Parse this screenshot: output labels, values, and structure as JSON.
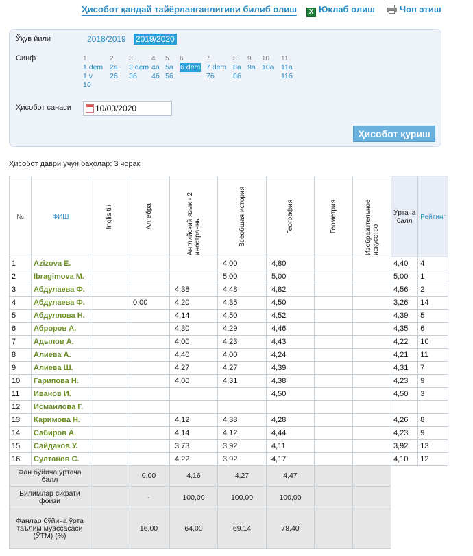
{
  "toolbar": {
    "howto": "Ҳисобот қандай тайёрланганлигини билиб олиш",
    "download": "Юклаб олиш",
    "print": "Чоп этиш"
  },
  "filters": {
    "year_label": "Ўқув йили",
    "years": [
      "2018/2019",
      "2019/2020"
    ],
    "active_year": "2019/2020",
    "class_label": "Синф",
    "grades": [
      {
        "num": "1",
        "classes": [
          "1 dem",
          "1 v",
          "1б"
        ]
      },
      {
        "num": "2",
        "classes": [
          "2а",
          "2б"
        ]
      },
      {
        "num": "3",
        "classes": [
          "3 dem",
          "3б"
        ]
      },
      {
        "num": "4",
        "classes": [
          "4а",
          "4б"
        ]
      },
      {
        "num": "5",
        "classes": [
          "5а",
          "5б"
        ]
      },
      {
        "num": "6",
        "classes": [
          "6 dem"
        ]
      },
      {
        "num": "7",
        "classes": [
          "7 dem",
          "7б"
        ]
      },
      {
        "num": "8",
        "classes": [
          "8а",
          "8б"
        ]
      },
      {
        "num": "9",
        "classes": [
          "9а"
        ]
      },
      {
        "num": "10",
        "classes": [
          "10а"
        ]
      },
      {
        "num": "11",
        "classes": [
          "11а",
          "11б"
        ]
      }
    ],
    "active_class": "6 dem",
    "date_label": "Ҳисобот санаси",
    "date_value": "10/03/2020",
    "report_button": "Ҳисобот қуриш"
  },
  "period_text": "Ҳисобот даври учун баҳолар: 3 чорак",
  "table": {
    "headers": {
      "num": "№",
      "name": "ФИШ",
      "subjects": [
        "Inglis tili",
        "Алгебра",
        "Английский язык - 2 иностранны",
        "Всеобщая история",
        "География",
        "Геометрия",
        "Изобразительное искусство"
      ],
      "avg": "Ўртача балл",
      "rank": "Рейтинг"
    },
    "rows": [
      {
        "n": "1",
        "name": "Azizova E.",
        "g": [
          "",
          "",
          "",
          "4,00",
          "4,80",
          "",
          ""
        ],
        "avg": "4,40",
        "rank": "4"
      },
      {
        "n": "2",
        "name": "Ibragimova M.",
        "g": [
          "",
          "",
          "",
          "5,00",
          "5,00",
          "",
          ""
        ],
        "avg": "5,00",
        "rank": "1"
      },
      {
        "n": "3",
        "name": "Абдулаева Ф.",
        "g": [
          "",
          "",
          "4,38",
          "4,48",
          "4,82",
          "",
          ""
        ],
        "avg": "4,56",
        "rank": "2"
      },
      {
        "n": "4",
        "name": "Абдулаева Ф.",
        "g": [
          "",
          "0,00",
          "4,20",
          "4,35",
          "4,50",
          "",
          ""
        ],
        "avg": "3,26",
        "rank": "14"
      },
      {
        "n": "5",
        "name": "Абдуллова Н.",
        "g": [
          "",
          "",
          "4,14",
          "4,50",
          "4,52",
          "",
          ""
        ],
        "avg": "4,39",
        "rank": "5"
      },
      {
        "n": "6",
        "name": "Аброров А.",
        "g": [
          "",
          "",
          "4,30",
          "4,29",
          "4,46",
          "",
          ""
        ],
        "avg": "4,35",
        "rank": "6"
      },
      {
        "n": "7",
        "name": "Адылов А.",
        "g": [
          "",
          "",
          "4,00",
          "4,23",
          "4,43",
          "",
          ""
        ],
        "avg": "4,22",
        "rank": "10"
      },
      {
        "n": "8",
        "name": "Алиева А.",
        "g": [
          "",
          "",
          "4,40",
          "4,00",
          "4,24",
          "",
          ""
        ],
        "avg": "4,21",
        "rank": "11"
      },
      {
        "n": "9",
        "name": "Алиева Ш.",
        "g": [
          "",
          "",
          "4,27",
          "4,27",
          "4,39",
          "",
          ""
        ],
        "avg": "4,31",
        "rank": "7"
      },
      {
        "n": "10",
        "name": "Гарипова Н.",
        "g": [
          "",
          "",
          "4,00",
          "4,31",
          "4,38",
          "",
          ""
        ],
        "avg": "4,23",
        "rank": "9"
      },
      {
        "n": "11",
        "name": "Иванов И.",
        "g": [
          "",
          "",
          "",
          "",
          "4,50",
          "",
          ""
        ],
        "avg": "4,50",
        "rank": "3"
      },
      {
        "n": "12",
        "name": "Исмаилова Г.",
        "g": [
          "",
          "",
          "",
          "",
          "",
          "",
          ""
        ],
        "avg": "",
        "rank": ""
      },
      {
        "n": "13",
        "name": "Каримова Н.",
        "g": [
          "",
          "",
          "4,12",
          "4,38",
          "4,28",
          "",
          ""
        ],
        "avg": "4,26",
        "rank": "8"
      },
      {
        "n": "14",
        "name": "Сабиров А.",
        "g": [
          "",
          "",
          "4,14",
          "4,12",
          "4,44",
          "",
          ""
        ],
        "avg": "4,23",
        "rank": "9"
      },
      {
        "n": "15",
        "name": "Сайдаков У.",
        "g": [
          "",
          "",
          "3,73",
          "3,92",
          "4,11",
          "",
          ""
        ],
        "avg": "3,92",
        "rank": "13"
      },
      {
        "n": "16",
        "name": "Султанов С.",
        "g": [
          "",
          "",
          "4,22",
          "3,92",
          "4,17",
          "",
          ""
        ],
        "avg": "4,10",
        "rank": "12"
      }
    ],
    "footer": [
      {
        "label": "Фан бўйича ўртача балл",
        "g": [
          "",
          "0,00",
          "4,16",
          "4,27",
          "4,47",
          "",
          ""
        ]
      },
      {
        "label": "Билимлар сифати фоизи",
        "g": [
          "",
          "-",
          "100,00",
          "100,00",
          "100,00",
          "",
          ""
        ]
      },
      {
        "label": "Фанлар бўйича ўрта таълим муассасаси (ЎТМ) (%)",
        "g": [
          "",
          "16,00",
          "64,00",
          "69,14",
          "78,40",
          "",
          ""
        ]
      }
    ]
  }
}
